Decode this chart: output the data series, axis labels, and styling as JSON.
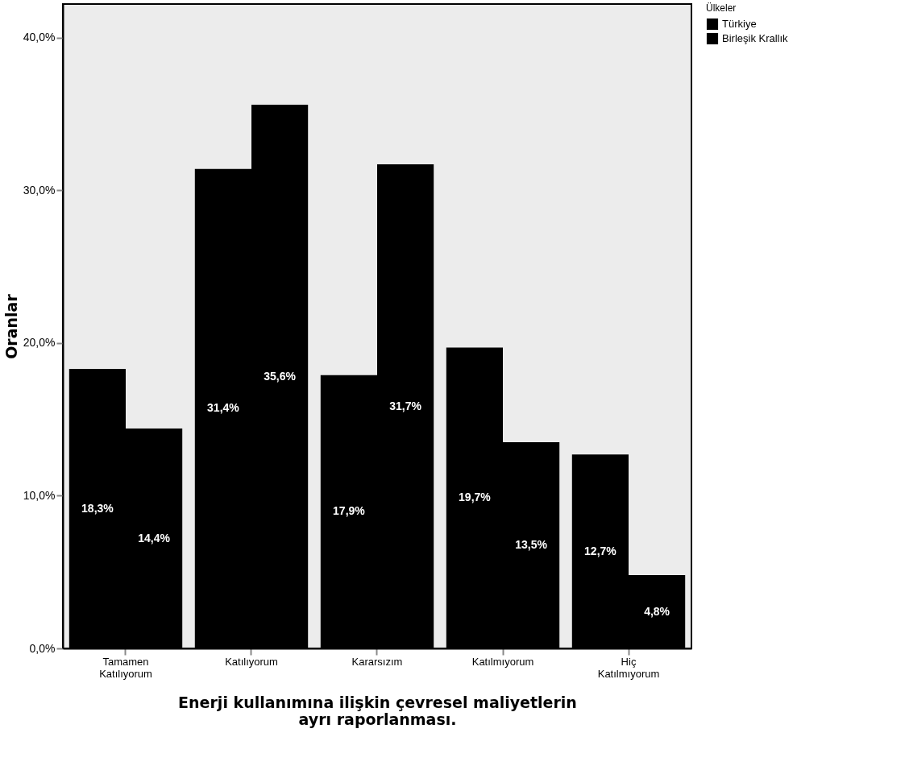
{
  "chart_data": {
    "type": "bar",
    "xlabel": "Enerji kullanımına ilişkin çevresel maliyetlerin ayrı raporlanması.",
    "ylabel": "Oranlar",
    "legend_title": "Ülkeler",
    "legend": "top right",
    "categories": [
      "Tamamen Katılıyorum",
      "Katılıyorum",
      "Kararsızım",
      "Katılmıyorum",
      "Hiç Katılmıyorum"
    ],
    "series": [
      {
        "name": "Türkiye",
        "color": "#000000",
        "values": [
          18.3,
          31.4,
          17.9,
          19.7,
          12.7
        ],
        "value_labels": [
          "18,3%",
          "31,4%",
          "17,9%",
          "19,7%",
          "12,7%"
        ]
      },
      {
        "name": "Birleşik Krallık",
        "color": "#000000",
        "values": [
          14.4,
          35.6,
          31.7,
          13.5,
          4.8
        ],
        "value_labels": [
          "14,4%",
          "35,6%",
          "31,7%",
          "13,5%",
          "4,8%"
        ]
      }
    ],
    "ylim": [
      0,
      42.2
    ],
    "yticks": [
      {
        "value": 0,
        "label": "0,0%"
      },
      {
        "value": 10,
        "label": "10,0%"
      },
      {
        "value": 20,
        "label": "20,0%"
      },
      {
        "value": 30,
        "label": "30,0%"
      },
      {
        "value": 40,
        "label": "40,0%"
      }
    ]
  }
}
